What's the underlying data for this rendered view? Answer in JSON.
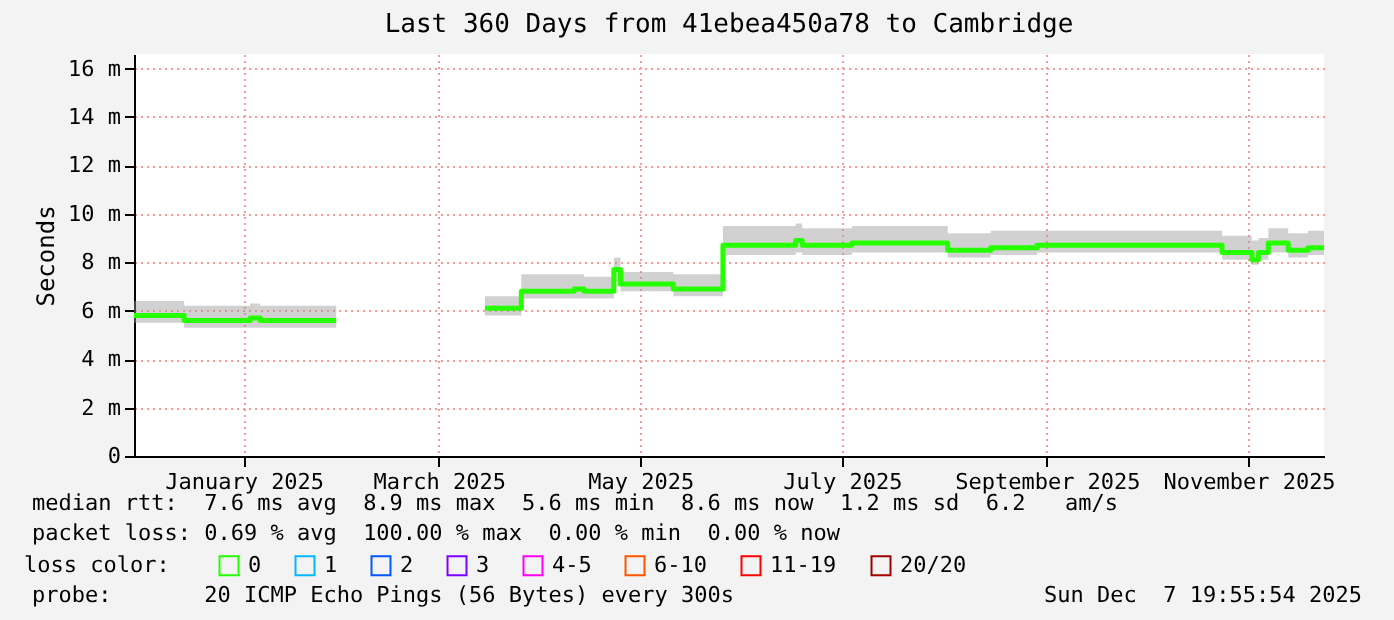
{
  "chart_data": {
    "type": "step",
    "title": "Last 360 Days from 41ebea450a78 to Cambridge",
    "ylabel": "Seconds",
    "legend_title": "loss color:",
    "legend": "bottom left",
    "grid": true,
    "xlim": [
      "2024-12-12T20:00",
      "2025-12-07T20:00"
    ],
    "xticks": [
      {
        "value": "2025-01-15",
        "label": "January 2025"
      },
      {
        "value": "2025-03-15",
        "label": "March 2025"
      },
      {
        "value": "2025-05-15",
        "label": "May 2025"
      },
      {
        "value": "2025-07-15",
        "label": "July 2025"
      },
      {
        "value": "2025-09-15",
        "label": "September 2025"
      },
      {
        "value": "2025-11-15",
        "label": "November 2025"
      }
    ],
    "ylim": [
      0,
      16.6
    ],
    "yticks": [
      0,
      {
        "value": 2,
        "label": "2 m"
      },
      {
        "value": 4,
        "label": "4 m"
      },
      {
        "value": 6,
        "label": "6 m"
      },
      {
        "value": 8,
        "label": "8 m"
      },
      {
        "value": 10,
        "label": "10 m"
      },
      {
        "value": 12,
        "label": "12 m"
      },
      {
        "value": 14,
        "label": "14 m"
      },
      {
        "value": 16,
        "label": "16 m"
      }
    ],
    "series": [
      {
        "name": "0",
        "color": "#26ff00",
        "x": [
          "2024-12-12T20:00",
          "2024-12-28",
          "2025-01-17",
          "2025-01-20",
          "2025-02-12",
          "2025-02-13",
          "2025-03-29",
          "2025-04-09",
          "2025-04-25",
          "2025-04-28",
          "2025-05-07",
          "2025-05-09",
          "2025-05-25",
          "2025-06-09",
          "2025-07-01",
          "2025-07-03",
          "2025-07-18",
          "2025-08-16",
          "2025-08-29",
          "2025-09-12",
          "2025-11-07",
          "2025-11-16",
          "2025-11-18",
          "2025-11-21",
          "2025-11-27",
          "2025-12-03",
          "2025-12-07T20:00"
        ],
        "values": [
          5.8,
          5.6,
          5.7,
          5.6,
          5.6,
          null,
          6.1,
          6.8,
          6.9,
          6.8,
          7.7,
          7.1,
          6.9,
          8.7,
          8.9,
          8.7,
          8.8,
          8.5,
          8.6,
          8.7,
          8.4,
          8.1,
          8.4,
          8.8,
          8.5,
          8.6,
          8.6
        ],
        "lower": [
          5.5,
          5.3,
          5.3,
          5.3,
          5.3,
          null,
          5.8,
          6.5,
          6.5,
          6.5,
          7.2,
          6.8,
          6.6,
          8.3,
          8.4,
          8.3,
          8.4,
          8.2,
          8.3,
          8.4,
          8.1,
          7.9,
          8.1,
          8.4,
          8.2,
          8.3,
          8.3
        ],
        "upper": [
          6.4,
          6.2,
          6.3,
          6.2,
          6.2,
          null,
          6.6,
          7.5,
          7.5,
          7.4,
          8.2,
          7.6,
          7.5,
          9.5,
          9.6,
          9.4,
          9.5,
          9.2,
          9.3,
          9.3,
          9.1,
          8.9,
          9.0,
          9.4,
          9.2,
          9.3,
          9.3
        ]
      },
      {
        "name": "1",
        "color": "#00b8ff"
      },
      {
        "name": "2",
        "color": "#0059ff"
      },
      {
        "name": "3",
        "color": "#7e00ff"
      },
      {
        "name": "4-5",
        "color": "#ff00ff"
      },
      {
        "name": "6-10",
        "color": "#ff5500"
      },
      {
        "name": "11-19",
        "color": "#ff0000"
      },
      {
        "name": "20/20",
        "color": "#a10000"
      }
    ],
    "annotations": [
      "median rtt:  7.6 ms avg  8.9 ms max  5.6 ms min  8.6 ms now  1.2 ms sd  6.2   am/s",
      "packet loss: 0.69 % avg  100.00 % max  0.00 % min  0.00 % now",
      "probe:       20 ICMP Echo Pings (56 Bytes) every 300s",
      "Sun Dec  7 19:55:54 2025"
    ]
  }
}
